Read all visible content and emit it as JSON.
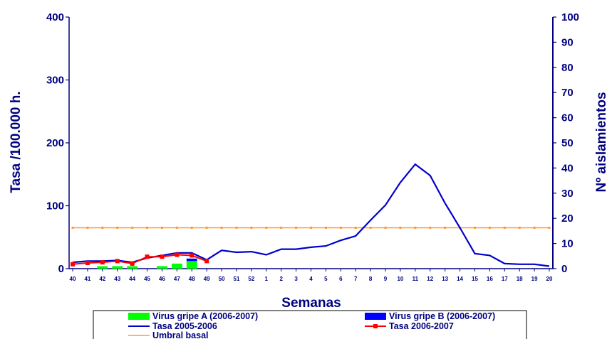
{
  "chart_data": {
    "type": "line",
    "xlabel": "Semanas",
    "ylabel_left": "Tasa /100.000 h.",
    "ylabel_right": "Nº aislamientos",
    "ylim_left": [
      0,
      400
    ],
    "ylim_right": [
      0,
      100
    ],
    "yticks_left": [
      "0",
      "100",
      "200",
      "300",
      "400"
    ],
    "yticks_right": [
      "0",
      "10",
      "20",
      "30",
      "40",
      "50",
      "60",
      "70",
      "80",
      "90",
      "100"
    ],
    "categories": [
      "40",
      "41",
      "42",
      "43",
      "44",
      "45",
      "46",
      "47",
      "48",
      "49",
      "50",
      "51",
      "52",
      "1",
      "2",
      "3",
      "4",
      "5",
      "6",
      "7",
      "8",
      "9",
      "10",
      "11",
      "12",
      "13",
      "14",
      "15",
      "16",
      "17",
      "18",
      "19",
      "20"
    ],
    "series": [
      {
        "name": "Virus gripe A (2006-2007)",
        "kind": "bar",
        "axis": "right",
        "color": "#00ff00",
        "values": [
          0,
          0,
          1,
          1,
          1,
          0,
          1,
          2,
          3,
          null,
          null,
          null,
          null,
          null,
          null,
          null,
          null,
          null,
          null,
          null,
          null,
          null,
          null,
          null,
          null,
          null,
          null,
          null,
          null,
          null,
          null,
          null,
          null
        ]
      },
      {
        "name": "Virus gripe B (2006-2007)",
        "kind": "bar",
        "axis": "right",
        "color": "#0000ff",
        "values": [
          0,
          0,
          0,
          0,
          0,
          0,
          0,
          0,
          1,
          null,
          null,
          null,
          null,
          null,
          null,
          null,
          null,
          null,
          null,
          null,
          null,
          null,
          null,
          null,
          null,
          null,
          null,
          null,
          null,
          null,
          null,
          null,
          null
        ]
      },
      {
        "name": "Tasa 2005-2006",
        "kind": "line",
        "axis": "left",
        "color": "#0000cc",
        "values": [
          10,
          12,
          12,
          13,
          10,
          17,
          21,
          25,
          25,
          14,
          29,
          26,
          27,
          22,
          31,
          31,
          34,
          36,
          45,
          52,
          77,
          101,
          137,
          166,
          148,
          104,
          65,
          24,
          21,
          8,
          7,
          7,
          4
        ]
      },
      {
        "name": "Tasa 2006-2007",
        "kind": "line",
        "axis": "left",
        "color": "#ff0000",
        "values": [
          7,
          9,
          10,
          12,
          8,
          19,
          19,
          22,
          21,
          12,
          null,
          null,
          null,
          null,
          null,
          null,
          null,
          null,
          null,
          null,
          null,
          null,
          null,
          null,
          null,
          null,
          null,
          null,
          null,
          null,
          null,
          null,
          null
        ]
      },
      {
        "name": "Umbral basal",
        "kind": "line",
        "axis": "left",
        "color": "#ff9933",
        "values": [
          65,
          65,
          65,
          65,
          65,
          65,
          65,
          65,
          65,
          65,
          65,
          65,
          65,
          65,
          65,
          65,
          65,
          65,
          65,
          65,
          65,
          65,
          65,
          65,
          65,
          65,
          65,
          65,
          65,
          65,
          65,
          65,
          65
        ]
      }
    ],
    "legend_position": "bottom",
    "grid": false
  }
}
